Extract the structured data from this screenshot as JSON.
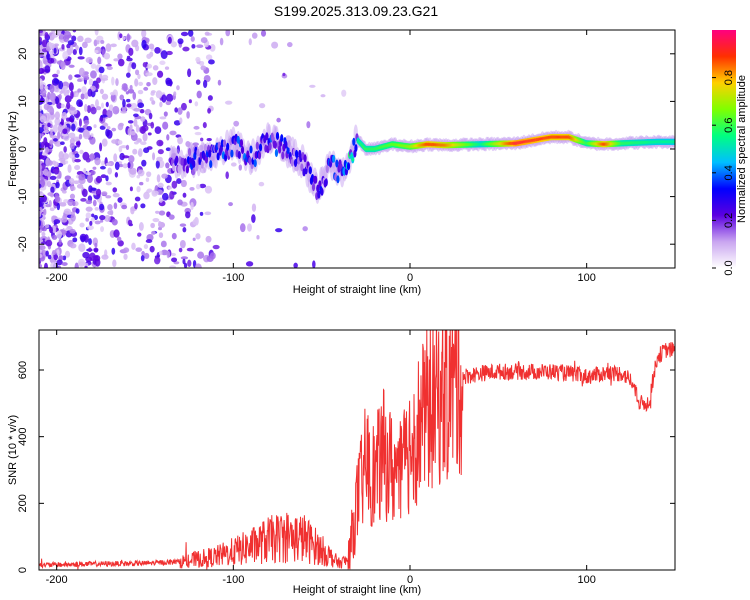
{
  "title": "S199.2025.313.09.23.G21",
  "chart_data": [
    {
      "type": "heatmap",
      "xlabel": "Height of straight line (km)",
      "ylabel": "Frequency (Hz)",
      "xlim": [
        -210,
        150
      ],
      "ylim": [
        -25,
        25
      ],
      "x_ticks": [
        -200,
        -100,
        0,
        100
      ],
      "y_ticks": [
        -20,
        -10,
        0,
        10,
        20
      ],
      "colorbar": {
        "label": "Normalized spectral amplitude",
        "range": [
          0,
          1
        ],
        "ticks": [
          0.0,
          0.2,
          0.4,
          0.6,
          0.8
        ],
        "stops": [
          "#ffffff",
          "#c9a5f0",
          "#5b00e0",
          "#0000ff",
          "#00bfff",
          "#00ff80",
          "#80ff00",
          "#ffd000",
          "#ff3000",
          "#ff007f"
        ]
      },
      "ridge": {
        "x": [
          -130,
          -120,
          -110,
          -100,
          -90,
          -80,
          -70,
          -60,
          -52,
          -45,
          -40,
          -35,
          -30,
          -25,
          -20,
          -10,
          0,
          10,
          20,
          40,
          60,
          80,
          90,
          100,
          110,
          120,
          140,
          150
        ],
        "freq": [
          -3,
          -2,
          -1,
          1,
          -2,
          2,
          0,
          -3,
          -9,
          -3,
          -5,
          -3,
          2,
          0,
          0,
          1,
          0.5,
          1,
          0.8,
          1,
          1.2,
          2.5,
          2.5,
          1.2,
          1,
          1.2,
          1.5,
          1.5
        ],
        "amp": [
          0.3,
          0.35,
          0.35,
          0.4,
          0.35,
          0.4,
          0.35,
          0.3,
          0.35,
          0.35,
          0.45,
          0.5,
          0.55,
          0.6,
          0.6,
          0.65,
          0.7,
          0.9,
          0.85,
          0.55,
          0.95,
          0.9,
          0.9,
          0.6,
          0.9,
          0.6,
          0.55,
          0.55
        ]
      }
    },
    {
      "type": "line",
      "xlabel": "Height of straight line (km)",
      "ylabel": "SNR (10 * v/v)",
      "xlim": [
        -210,
        150
      ],
      "ylim": [
        0,
        720
      ],
      "x_ticks": [
        -200,
        -100,
        0,
        100
      ],
      "y_ticks": [
        0,
        200,
        400,
        600
      ],
      "color": "#f03030",
      "series": [
        {
          "name": "SNR",
          "x": [
            -210,
            -180,
            -150,
            -130,
            -110,
            -100,
            -90,
            -80,
            -70,
            -60,
            -50,
            -45,
            -40,
            -35,
            -30,
            -25,
            -20,
            -15,
            -10,
            -5,
            0,
            10,
            20,
            30,
            40,
            50,
            60,
            70,
            80,
            90,
            100,
            110,
            120,
            125,
            130,
            135,
            140,
            145,
            150
          ],
          "y": [
            15,
            18,
            20,
            25,
            40,
            55,
            70,
            90,
            100,
            95,
            60,
            40,
            20,
            30,
            200,
            320,
            280,
            350,
            300,
            280,
            380,
            480,
            540,
            580,
            590,
            595,
            595,
            595,
            595,
            590,
            580,
            590,
            590,
            570,
            500,
            500,
            640,
            660,
            660
          ]
        }
      ]
    }
  ]
}
